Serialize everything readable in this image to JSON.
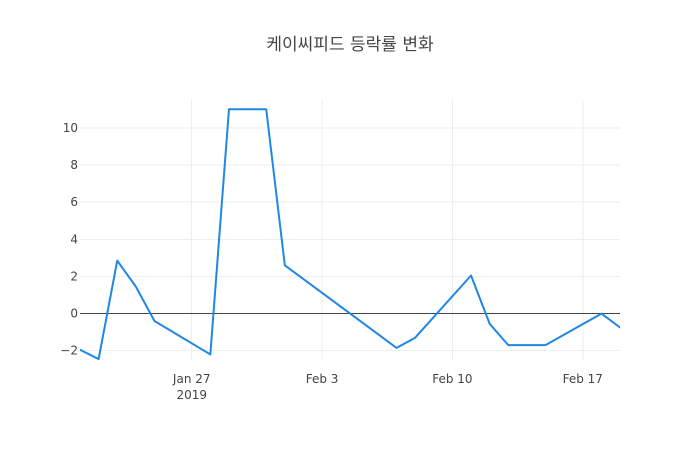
{
  "chart_data": {
    "type": "line",
    "title": "케이씨피드 등락률 변화",
    "xlabel": "",
    "ylabel": "",
    "x_tick_labels": [
      {
        "date": "2019-01-27",
        "line1": "Jan 27",
        "line2": "2019"
      },
      {
        "date": "2019-02-03",
        "line1": "Feb 3",
        "line2": ""
      },
      {
        "date": "2019-02-10",
        "line1": "Feb 10",
        "line2": ""
      },
      {
        "date": "2019-02-17",
        "line1": "Feb 17",
        "line2": ""
      }
    ],
    "y_ticks": [
      -2,
      0,
      2,
      4,
      6,
      8,
      10
    ],
    "y_tick_labels": [
      "−2",
      "0",
      "2",
      "4",
      "6",
      "8",
      "10"
    ],
    "xlim": [
      "2019-01-21",
      "2019-02-19"
    ],
    "ylim": [
      -2.5,
      11.5
    ],
    "grid": true,
    "colors": {
      "line": "#1f87e5",
      "grid": "#eeeeee",
      "zero_line": "#444444"
    },
    "series": [
      {
        "x": [
          "2019-01-21",
          "2019-01-22",
          "2019-01-23",
          "2019-01-24",
          "2019-01-25",
          "2019-01-28",
          "2019-01-29",
          "2019-01-30",
          "2019-01-31",
          "2019-02-01",
          "2019-02-07",
          "2019-02-08",
          "2019-02-11",
          "2019-02-12",
          "2019-02-13",
          "2019-02-14",
          "2019-02-15",
          "2019-02-18",
          "2019-02-19"
        ],
        "values": [
          -1.95,
          -2.45,
          2.85,
          1.45,
          -0.4,
          -2.2,
          11.0,
          11.0,
          11.0,
          2.6,
          -1.85,
          -1.3,
          2.05,
          -0.55,
          -1.7,
          -1.7,
          -1.7,
          0.0,
          -0.75
        ]
      }
    ]
  }
}
